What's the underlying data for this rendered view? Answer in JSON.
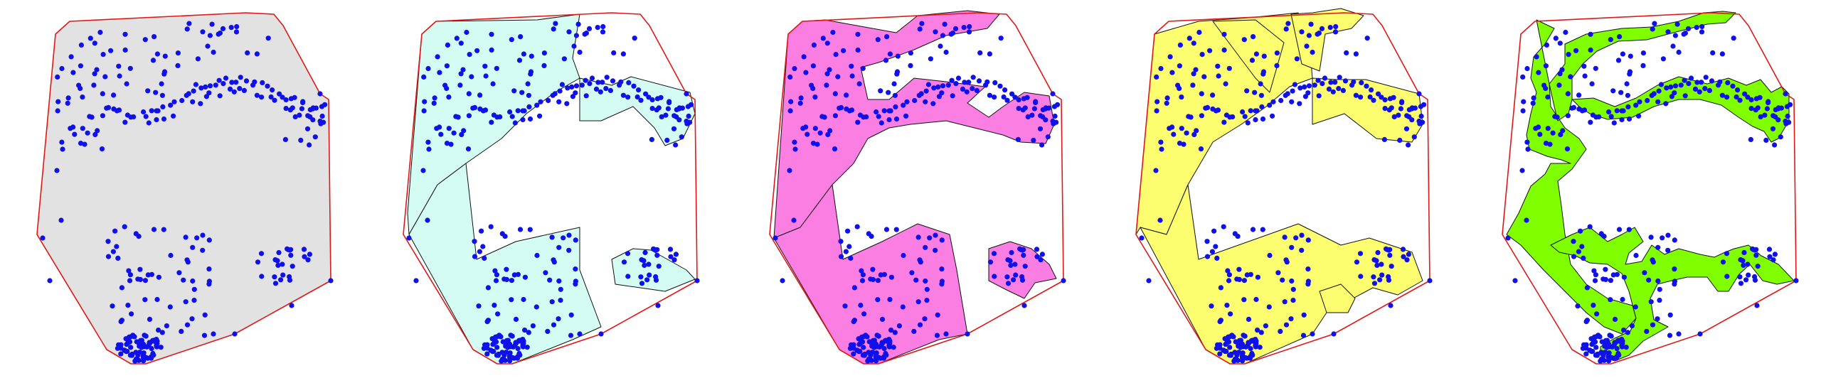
{
  "figure": {
    "panel_count": 5,
    "colors": {
      "background": "#ffffff",
      "hull_stroke": "#e01818",
      "point_fill": "#1010e8",
      "region_stroke": "#111111",
      "panel_fills": [
        "#e2e2e2",
        "#d4fcf2",
        "#fb7fe3",
        "#fdfd70",
        "#80ff00"
      ]
    },
    "marker": "filled-circle",
    "panels": [
      {
        "fill": "#e2e2e2",
        "shape": "convex-hull"
      },
      {
        "fill": "#d4fcf2",
        "shape": "coarse-concave-hull"
      },
      {
        "fill": "#fb7fe3",
        "shape": "concave-hull"
      },
      {
        "fill": "#fdfd70",
        "shape": "concave-hull-with-spokes"
      },
      {
        "fill": "#80ff00",
        "shape": "tight-concave-hull"
      }
    ]
  }
}
